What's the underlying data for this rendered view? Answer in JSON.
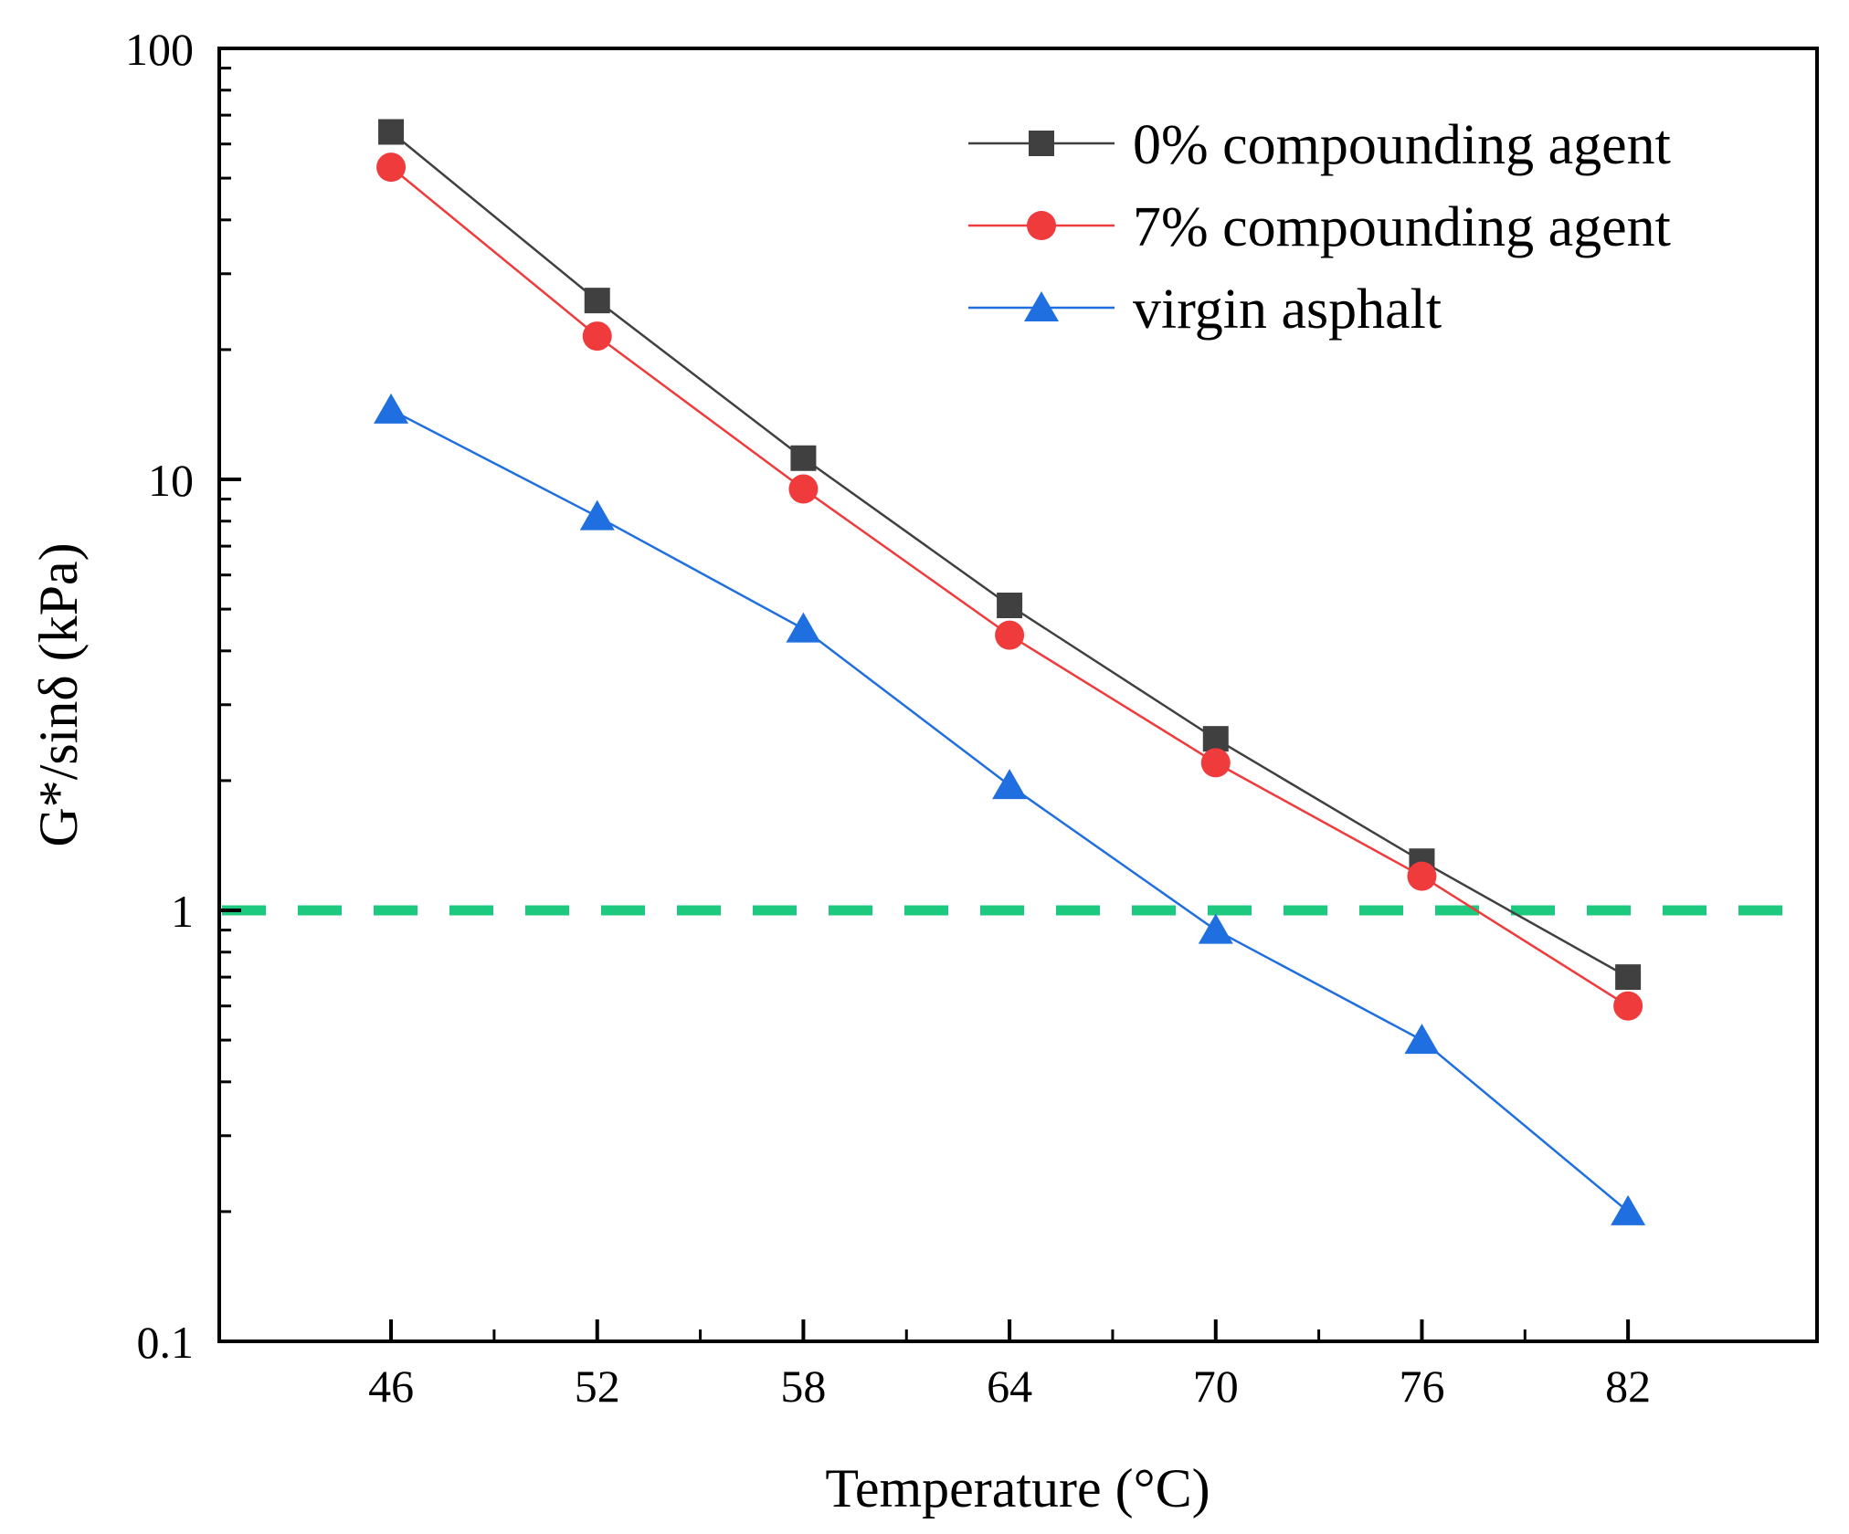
{
  "chart_data": {
    "type": "line",
    "title": "",
    "xlabel": "Temperature (°C)",
    "ylabel": "G*/sinδ (kPa)",
    "yscale": "log",
    "xlim": [
      41,
      87.5
    ],
    "ylim": [
      0.1,
      100
    ],
    "x_ticks": [
      46,
      52,
      58,
      64,
      70,
      76,
      82
    ],
    "x_tick_labels": [
      "46",
      "52",
      "58",
      "64",
      "70",
      "76",
      "82"
    ],
    "y_ticks": [
      0.1,
      1,
      10,
      100
    ],
    "y_tick_labels": [
      "0.1",
      "1",
      "10",
      "100"
    ],
    "x": [
      46,
      52,
      58,
      64,
      70,
      76,
      82
    ],
    "series": [
      {
        "name": "0% compounding agent",
        "marker": "square",
        "color": "#404040",
        "values": [
          64,
          26,
          11.2,
          5.1,
          2.5,
          1.3,
          0.7
        ]
      },
      {
        "name": "7% compounding agent",
        "marker": "circle",
        "color": "#ef3b3b",
        "values": [
          53,
          21.5,
          9.5,
          4.35,
          2.2,
          1.2,
          0.6
        ]
      },
      {
        "name": "virgin asphalt",
        "marker": "triangle",
        "color": "#1f6fe0",
        "values": [
          14.5,
          8.2,
          4.5,
          1.95,
          0.9,
          0.5,
          0.2
        ]
      }
    ],
    "reference_line": {
      "y": 1,
      "style": "dashed",
      "color": "#1dc97f"
    },
    "legend_position": "top-right",
    "grid": false
  }
}
